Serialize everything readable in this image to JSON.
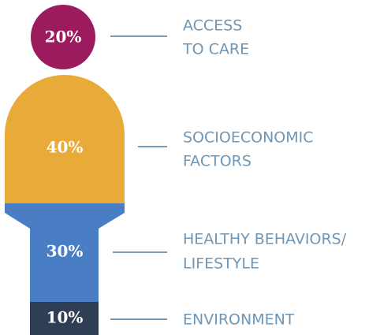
{
  "segments": [
    {
      "value": "20%",
      "label": [
        "ACCESS",
        "TO CARE"
      ]
    },
    {
      "value": "40%",
      "label": [
        "SOCIOECONOMIC",
        "FACTORS"
      ]
    },
    {
      "value": "30%",
      "label": [
        "HEALTHY BEHAVIORS/",
        "LIFESTYLE"
      ]
    },
    {
      "value": "10%",
      "label": [
        "ENVIRONMENT"
      ]
    }
  ]
}
